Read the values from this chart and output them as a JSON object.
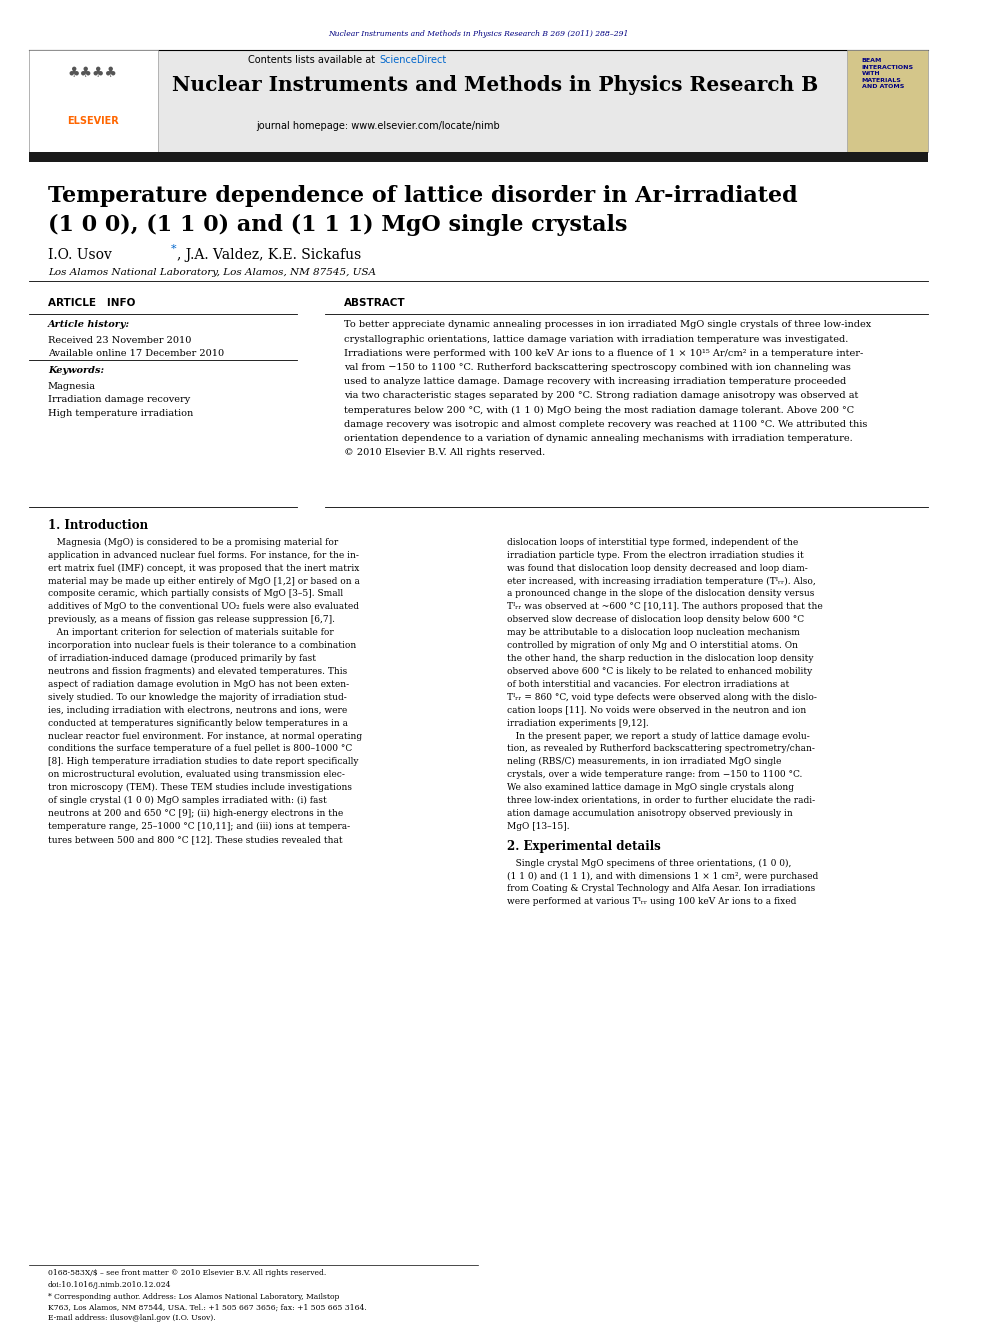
{
  "page_width": 9.92,
  "page_height": 13.23,
  "background_color": "#ffffff",
  "header_journal_ref": "Nuclear Instruments and Methods in Physics Research B 269 (2011) 288–291",
  "header_journal_ref_color": "#000080",
  "journal_banner_bg": "#e8e8e8",
  "sciencedirect_color": "#0066cc",
  "journal_name": "Nuclear Instruments and Methods in Physics Research B",
  "journal_homepage": "journal homepage: www.elsevier.com/locate/nimb",
  "black_bar_color": "#1a1a1a",
  "article_title_line1": "Temperature dependence of lattice disorder in Ar-irradiated",
  "article_title_line2": "(1 0 0), (1 1 0) and (1 1 1) MgO single crystals",
  "affiliation": "Los Alamos National Laboratory, Los Alamos, NM 87545, USA",
  "article_info_title": "ARTICLE   INFO",
  "article_history_label": "Article history:",
  "received": "Received 23 November 2010",
  "available_online": "Available online 17 December 2010",
  "keywords_label": "Keywords:",
  "keyword1": "Magnesia",
  "keyword2": "Irradiation damage recovery",
  "keyword3": "High temperature irradiation",
  "abstract_title": "ABSTRACT",
  "abstract_text": "To better appreciate dynamic annealing processes in ion irradiated MgO single crystals of three low-index\ncrystallographic orientations, lattice damage variation with irradiation temperature was investigated.\nIrradiations were performed with 100 keV Ar ions to a fluence of 1 × 10¹⁵ Ar/cm² in a temperature inter-\nval from −150 to 1100 °C. Rutherford backscattering spectroscopy combined with ion channeling was\nused to analyze lattice damage. Damage recovery with increasing irradiation temperature proceeded\nvia two characteristic stages separated by 200 °C. Strong radiation damage anisotropy was observed at\ntemperatures below 200 °C, with (1 1 0) MgO being the most radiation damage tolerant. Above 200 °C\ndamage recovery was isotropic and almost complete recovery was reached at 1100 °C. We attributed this\norientation dependence to a variation of dynamic annealing mechanisms with irradiation temperature.\n© 2010 Elsevier B.V. All rights reserved.",
  "section1_title": "1. Introduction",
  "section1_col1": "   Magnesia (MgO) is considered to be a promising material for\napplication in advanced nuclear fuel forms. For instance, for the in-\nert matrix fuel (IMF) concept, it was proposed that the inert matrix\nmaterial may be made up either entirely of MgO [1,2] or based on a\ncomposite ceramic, which partially consists of MgO [3–5]. Small\nadditives of MgO to the conventional UO₂ fuels were also evaluated\npreviously, as a means of fission gas release suppression [6,7].\n   An important criterion for selection of materials suitable for\nincorporation into nuclear fuels is their tolerance to a combination\nof irradiation-induced damage (produced primarily by fast\nneutrons and fission fragments) and elevated temperatures. This\naspect of radiation damage evolution in MgO has not been exten-\nsively studied. To our knowledge the majority of irradiation stud-\nies, including irradiation with electrons, neutrons and ions, were\nconducted at temperatures significantly below temperatures in a\nnuclear reactor fuel environment. For instance, at normal operating\nconditions the surface temperature of a fuel pellet is 800–1000 °C\n[8]. High temperature irradiation studies to date report specifically\non microstructural evolution, evaluated using transmission elec-\ntron microscopy (TEM). These TEM studies include investigations\nof single crystal (1 0 0) MgO samples irradiated with: (i) fast\nneutrons at 200 and 650 °C [9]; (ii) high-energy electrons in the\ntemperature range, 25–1000 °C [10,11]; and (iii) ions at tempera-\ntures between 500 and 800 °C [12]. These studies revealed that",
  "section1_col2": "dislocation loops of interstitial type formed, independent of the\nirradiation particle type. From the electron irradiation studies it\nwas found that dislocation loop density decreased and loop diam-\neter increased, with increasing irradiation temperature (Tᴵᵣᵣ). Also,\na pronounced change in the slope of the dislocation density versus\nTᴵᵣᵣ was observed at ~600 °C [10,11]. The authors proposed that the\nobserved slow decrease of dislocation loop density below 600 °C\nmay be attributable to a dislocation loop nucleation mechanism\ncontrolled by migration of only Mg and O interstitial atoms. On\nthe other hand, the sharp reduction in the dislocation loop density\nobserved above 600 °C is likely to be related to enhanced mobility\nof both interstitial and vacancies. For electron irradiations at\nTᴵᵣᵣ = 860 °C, void type defects were observed along with the dislo-\ncation loops [11]. No voids were observed in the neutron and ion\nirradiation experiments [9,12].\n   In the present paper, we report a study of lattice damage evolu-\ntion, as revealed by Rutherford backscattering spectrometry/chan-\nneling (RBS/C) measurements, in ion irradiated MgO single\ncrystals, over a wide temperature range: from −150 to 1100 °C.\nWe also examined lattice damage in MgO single crystals along\nthree low-index orientations, in order to further elucidate the radi-\nation damage accumulation anisotropy observed previously in\nMgO [13–15].",
  "section2_title": "2. Experimental details",
  "section2_col2": "   Single crystal MgO specimens of three orientations, (1 0 0),\n(1 1 0) and (1 1 1), and with dimensions 1 × 1 cm², were purchased\nfrom Coating & Crystal Technology and Alfa Aesar. Ion irradiations\nwere performed at various Tᴵᵣᵣ using 100 keV Ar ions to a fixed",
  "footnote_star_line1": "* Corresponding author. Address: Los Alamos National Laboratory, Mailstop",
  "footnote_star_line2": "K763, Los Alamos, NM 87544, USA. Tel.: +1 505 667 3656; fax: +1 505 665 3164.",
  "footnote_email": "E-mail address: ilusov@lanl.gov (I.O. Usov).",
  "issn_line": "0168-583X/$ – see front matter © 2010 Elsevier B.V. All rights reserved.",
  "doi_line": "doi:10.1016/j.nimb.2010.12.024"
}
